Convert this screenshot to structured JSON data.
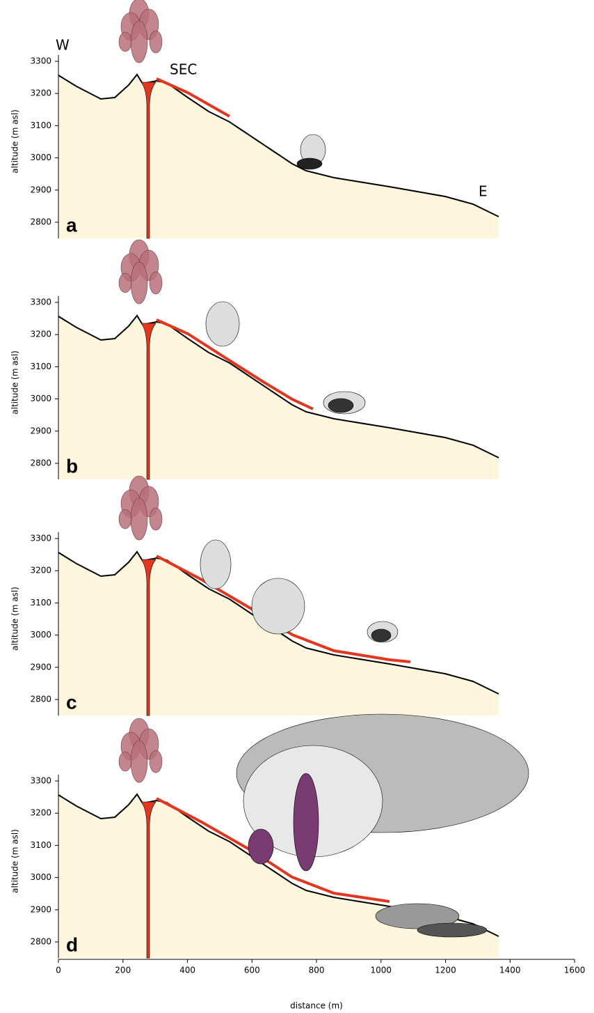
{
  "figure": {
    "y_axis_label": "altitude (m asl)",
    "x_axis_label": "distance  (m)",
    "ylim": [
      2750,
      3320
    ],
    "yticks": [
      2800,
      2900,
      3000,
      3100,
      3200,
      3300
    ],
    "xlim": [
      0,
      1600
    ],
    "xticks": [
      0,
      200,
      400,
      600,
      800,
      1000,
      1200,
      1400,
      1600
    ],
    "panels": [
      {
        "label": "a"
      },
      {
        "label": "b"
      },
      {
        "label": "c"
      },
      {
        "label": "d"
      }
    ],
    "annotations": {
      "west": "W",
      "summit": "SEC",
      "east": "E"
    }
  }
}
